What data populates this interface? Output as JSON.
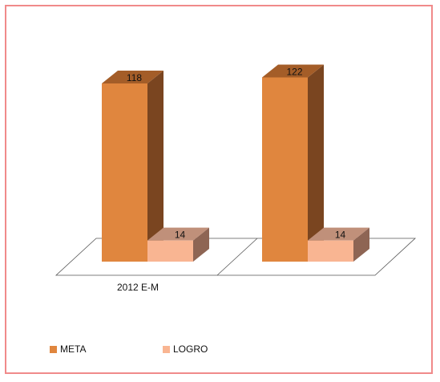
{
  "chart_data": {
    "type": "bar",
    "style": "3d-clustered-column",
    "categories": [
      "2012 E-M",
      ""
    ],
    "series": [
      {
        "name": "META",
        "values": [
          118,
          122
        ],
        "color": "#e0863e",
        "side_color": "#7a4520",
        "top_color": "#a45d28"
      },
      {
        "name": "LOGRO",
        "values": [
          14,
          14
        ],
        "color": "#f9b592",
        "side_color": "#8e6554",
        "top_color": "#c0907a"
      }
    ],
    "data_labels": [
      "118",
      "14",
      "122",
      "14"
    ],
    "legend_position": "bottom-left",
    "grid": false,
    "ylim": [
      0,
      130
    ]
  },
  "colors": {
    "border": "#f08a8a",
    "floor_line": "#555555"
  }
}
